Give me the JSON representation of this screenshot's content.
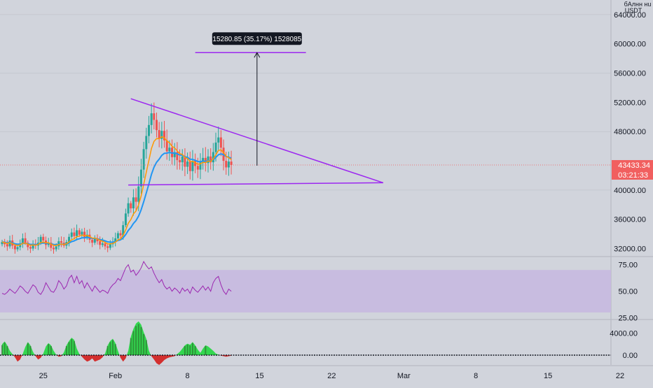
{
  "header": {
    "symbol_abbrev": "бАлнн нu",
    "quote_currency": "USDT"
  },
  "colors": {
    "background": "#d1d4dc",
    "up": "#26a69a",
    "down": "#ef5350",
    "ema_fast": "#ff9800",
    "ema_slow": "#2196f3",
    "rsi_line": "#9c27b0",
    "rsi_band": "#c7b9e0",
    "triangle": "#9c27f0",
    "osc_bright": "#33d74f",
    "osc_dark": "#2e7d32",
    "osc_red": "#d32f2f",
    "last_price_label": "#f15f5f"
  },
  "annotation": {
    "measure_label": "15280.85 (35.17%) 1528085"
  },
  "price_axis": {
    "ticks": [
      "64000.00",
      "60000.00",
      "56000.00",
      "52000.00",
      "48000.00",
      "40000.00",
      "36000.00",
      "32000.00"
    ],
    "last_price": "43433.34",
    "countdown": "03:21:33"
  },
  "rsi_axis": {
    "ticks": [
      "75.00",
      "50.00",
      "25.00"
    ]
  },
  "osc_axis": {
    "ticks": [
      "4000.00",
      "0.00"
    ]
  },
  "time_axis": {
    "ticks": [
      "25",
      "Feb",
      "8",
      "15",
      "22",
      "Mar",
      "8",
      "15",
      "22"
    ]
  },
  "chart_data": [
    {
      "type": "candlestick",
      "ylim": [
        31000,
        66000
      ],
      "x_start_date": "2021-01-21",
      "current_price": 43433.34,
      "triangle": {
        "upper_start": 52500,
        "upper_end": 41000,
        "lower_level": 40700,
        "end_date": "2021-02-27"
      },
      "target_line": 58800,
      "measured_move": {
        "change": 15280.85,
        "percent": 35.17
      },
      "closes": [
        32900,
        32600,
        32300,
        33100,
        32400,
        31900,
        32200,
        32700,
        33400,
        32800,
        32200,
        32000,
        32600,
        32400,
        32800,
        33600,
        33100,
        32500,
        32800,
        32100,
        31900,
        32300,
        33000,
        32800,
        32400,
        32900,
        33600,
        34200,
        33700,
        34500,
        33900,
        34300,
        33500,
        33900,
        33200,
        32800,
        33400,
        33000,
        32500,
        32700,
        32300,
        32100,
        32600,
        32900,
        33400,
        34100,
        33800,
        35200,
        36800,
        38200,
        37500,
        39000,
        38400,
        40500,
        42800,
        45600,
        47400,
        48900,
        50500,
        49600,
        48200,
        47000,
        48100,
        46800,
        45300,
        45800,
        44500,
        45200,
        44100,
        43800,
        44600,
        43200,
        43900,
        42600,
        44000,
        43300,
        42800,
        43800,
        44400,
        43700,
        44600,
        43800,
        45200,
        46500,
        47200,
        45800,
        44000,
        43100,
        43900,
        43433
      ]
    },
    {
      "type": "line",
      "name": "RSI",
      "ylim": [
        24,
        82
      ],
      "band": [
        30,
        70
      ],
      "values": [
        48,
        47,
        49,
        52,
        50,
        48,
        51,
        55,
        53,
        50,
        48,
        52,
        56,
        54,
        49,
        47,
        51,
        58,
        54,
        50,
        49,
        53,
        60,
        57,
        52,
        55,
        62,
        65,
        58,
        64,
        57,
        60,
        53,
        58,
        54,
        50,
        55,
        52,
        49,
        51,
        50,
        48,
        53,
        56,
        58,
        62,
        60,
        66,
        72,
        75,
        68,
        70,
        65,
        68,
        72,
        78,
        74,
        71,
        73,
        67,
        62,
        58,
        61,
        55,
        52,
        54,
        50,
        53,
        51,
        48,
        53,
        50,
        52,
        48,
        54,
        51,
        49,
        52,
        55,
        51,
        54,
        50,
        58,
        62,
        64,
        56,
        50,
        47,
        52,
        50
      ]
    },
    {
      "type": "area",
      "name": "Oscillator",
      "ylim": [
        -1800,
        6400
      ],
      "values": [
        2000,
        2500,
        1800,
        800,
        200,
        -400,
        -1200,
        -800,
        200,
        1500,
        2400,
        1800,
        600,
        -200,
        -800,
        -500,
        300,
        1600,
        2200,
        1800,
        800,
        100,
        -300,
        -200,
        500,
        1800,
        2600,
        3200,
        2800,
        1200,
        200,
        -300,
        -800,
        -1200,
        -1000,
        -600,
        -1200,
        -1000,
        -800,
        -400,
        300,
        1800,
        2600,
        3000,
        2200,
        800,
        -500,
        -1200,
        -600,
        800,
        3400,
        4800,
        5800,
        6200,
        5600,
        4200,
        3000,
        800,
        -200,
        -800,
        -1500,
        -1800,
        -1400,
        -900,
        -600,
        -400,
        -300,
        -200,
        200,
        600,
        1200,
        1800,
        2100,
        1900,
        2400,
        1800,
        1000,
        400,
        1200,
        1800,
        1600,
        1200,
        800,
        300,
        100,
        -100,
        -200,
        -300,
        -200,
        -100
      ]
    }
  ]
}
